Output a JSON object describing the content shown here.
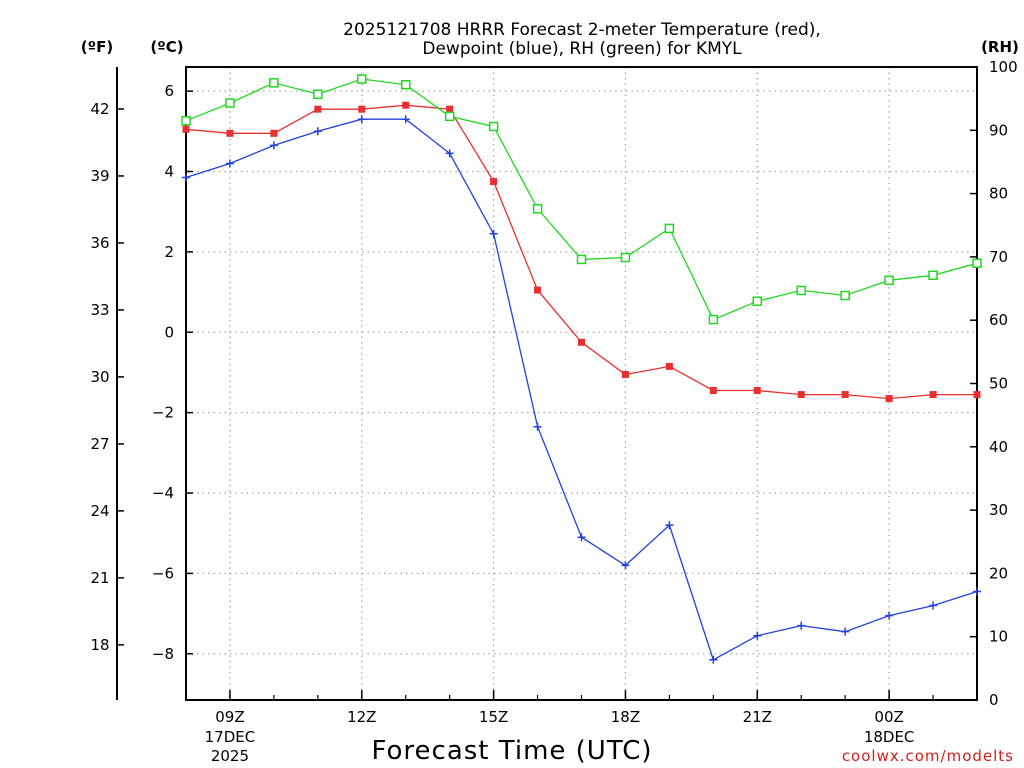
{
  "chart_data": {
    "type": "line",
    "title_lines": [
      "2025121708 HRRR Forecast 2-meter Temperature (red),",
      "Dewpoint (blue), RH (green) for KMYL"
    ],
    "xlabel": "Forecast Time (UTC)",
    "x_hours": [
      8,
      9,
      10,
      11,
      12,
      13,
      14,
      15,
      16,
      17,
      18,
      19,
      20,
      21,
      22,
      23,
      24,
      25,
      26
    ],
    "x_ticks": [
      {
        "hour": 9,
        "label": "09Z",
        "sub": [
          "17DEC",
          "2025"
        ]
      },
      {
        "hour": 12,
        "label": "12Z",
        "sub": []
      },
      {
        "hour": 15,
        "label": "15Z",
        "sub": []
      },
      {
        "hour": 18,
        "label": "18Z",
        "sub": []
      },
      {
        "hour": 21,
        "label": "21Z",
        "sub": []
      },
      {
        "hour": 24,
        "label": "00Z",
        "sub": [
          "18DEC"
        ]
      }
    ],
    "xlim": [
      8,
      26
    ],
    "left_axis_c": {
      "unit_label": "(ºC)",
      "lim": [
        -9.15,
        6.6
      ],
      "ticks": [
        6,
        4,
        2,
        0,
        -2,
        -4,
        -6,
        -8
      ],
      "tick_labels": [
        "6",
        "4",
        "2",
        "0",
        "−2",
        "−4",
        "−6",
        "−8"
      ]
    },
    "left_axis_f": {
      "unit_label": "(ºF)",
      "ticks": [
        42,
        39,
        36,
        33,
        30,
        27,
        24,
        21,
        18
      ]
    },
    "right_axis_rh": {
      "unit_label": "(RH)",
      "lim": [
        0,
        100
      ],
      "ticks": [
        100,
        90,
        80,
        70,
        60,
        50,
        40,
        30,
        20,
        10,
        0
      ]
    },
    "series": [
      {
        "name": "Temperature",
        "axis": "c",
        "color": "#e83030",
        "marker": "filled-square",
        "values": [
          5.05,
          4.95,
          4.95,
          5.55,
          5.55,
          5.65,
          5.55,
          3.75,
          1.05,
          -0.25,
          -1.05,
          -0.85,
          -1.45,
          -1.45,
          -1.55,
          -1.55,
          -1.65,
          -1.55,
          -1.55
        ]
      },
      {
        "name": "Dewpoint",
        "axis": "c",
        "color": "#2040e0",
        "marker": "plus",
        "values": [
          3.85,
          4.2,
          4.65,
          5.0,
          5.3,
          5.3,
          4.45,
          2.45,
          -2.35,
          -5.1,
          -5.8,
          -4.8,
          -8.15,
          -7.55,
          -7.3,
          -7.45,
          -7.05,
          -6.8,
          -6.45
        ]
      },
      {
        "name": "RH",
        "axis": "rh",
        "color": "#20d820",
        "marker": "open-square",
        "values": [
          91.5,
          94.3,
          97.5,
          95.7,
          98.1,
          97.2,
          92.2,
          90.6,
          77.6,
          69.6,
          69.9,
          74.5,
          60.1,
          63.0,
          64.7,
          63.9,
          66.3,
          67.1,
          69.0
        ]
      }
    ],
    "grid": true,
    "watermark": "coolwx.com/modelts"
  }
}
